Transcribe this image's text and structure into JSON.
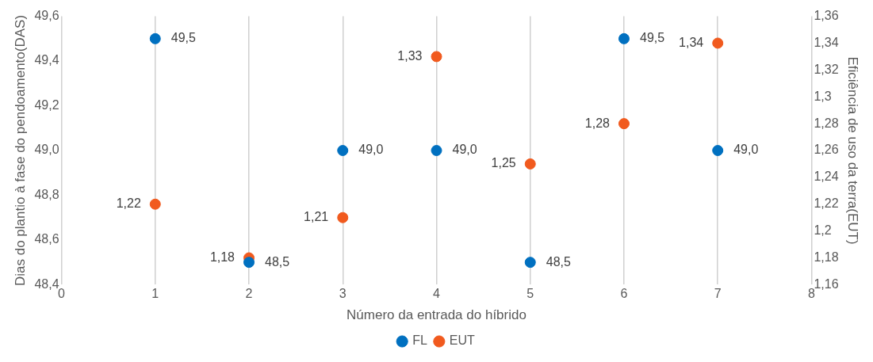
{
  "chart_data": {
    "type": "scatter",
    "xlabel": "Número da entrada do híbrido",
    "ylabel": "Dias do plantio à fase do pendoamento(DAS)",
    "y2label": "Eficiência de uso da terra(EUT)",
    "x": [
      1,
      2,
      3,
      4,
      5,
      6,
      7
    ],
    "series": [
      {
        "name": "FL",
        "color": "#0070c0",
        "values": [
          49.5,
          48.5,
          49.0,
          49.0,
          48.5,
          49.5,
          49.0
        ],
        "value_labels": [
          "49,5",
          "48,5",
          "49,0",
          "49,0",
          "48,5",
          "49,5",
          "49,0"
        ]
      },
      {
        "name": "EUT",
        "color": "#f15a1e",
        "axis": "y2",
        "values": [
          1.22,
          1.18,
          1.21,
          1.33,
          1.25,
          1.28,
          1.34
        ],
        "value_labels": [
          "1,22",
          "1,18",
          "1,21",
          "1,33",
          "1,25",
          "1,28",
          "1,34"
        ]
      }
    ],
    "xlim": [
      0,
      8
    ],
    "xticks": [
      0,
      1,
      2,
      3,
      4,
      5,
      6,
      7,
      8
    ],
    "ylim": [
      48.4,
      49.6
    ],
    "yticks": [
      {
        "value": 48.4,
        "label": "48,4"
      },
      {
        "value": 48.6,
        "label": "48,6"
      },
      {
        "value": 48.8,
        "label": "48,8"
      },
      {
        "value": 49.0,
        "label": "49,0"
      },
      {
        "value": 49.2,
        "label": "49,2"
      },
      {
        "value": 49.4,
        "label": "49,4"
      },
      {
        "value": 49.6,
        "label": "49,6"
      }
    ],
    "y2lim": [
      1.16,
      1.36
    ],
    "y2ticks": [
      {
        "value": 1.16,
        "label": "1,16"
      },
      {
        "value": 1.18,
        "label": "1,18"
      },
      {
        "value": 1.2,
        "label": "1,2"
      },
      {
        "value": 1.22,
        "label": "1,22"
      },
      {
        "value": 1.24,
        "label": "1,24"
      },
      {
        "value": 1.26,
        "label": "1,26"
      },
      {
        "value": 1.28,
        "label": "1,28"
      },
      {
        "value": 1.3,
        "label": "1,3"
      },
      {
        "value": 1.32,
        "label": "1,32"
      },
      {
        "value": 1.34,
        "label": "1,34"
      },
      {
        "value": 1.36,
        "label": "1,36"
      }
    ],
    "grid": "x",
    "legend": "bottom",
    "marker": "circle"
  }
}
